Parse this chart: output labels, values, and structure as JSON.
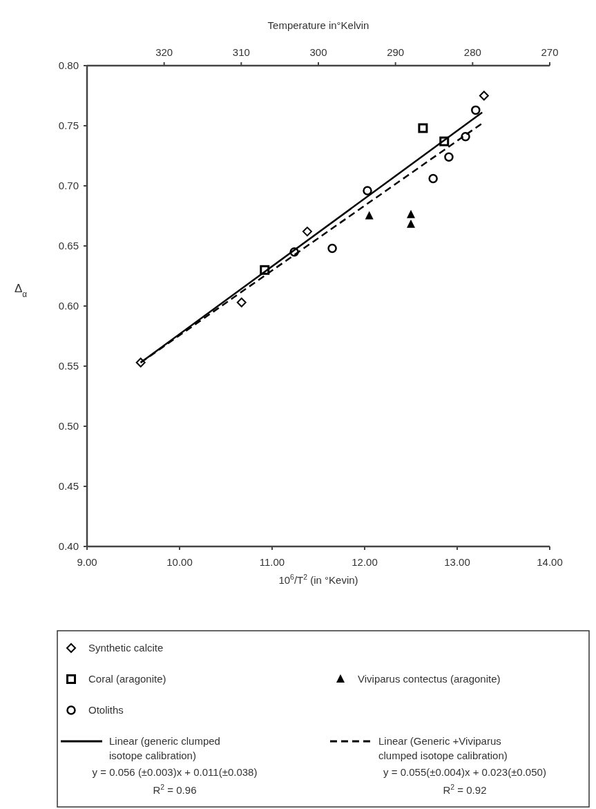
{
  "chart_data": {
    "type": "scatter",
    "xlabel": "10$^{6}$/T$^{2}$ (in °Kevin)",
    "ylabel": "Δ$_{α}$",
    "x2label": "Temperature in°Kelvin",
    "xlim": [
      9,
      14
    ],
    "xticks": [
      {
        "value": 9,
        "label": "9.00"
      },
      {
        "value": 10,
        "label": "10.00"
      },
      {
        "value": 11,
        "label": "11.00"
      },
      {
        "value": 12,
        "label": "12.00"
      },
      {
        "value": 13,
        "label": "13.00"
      },
      {
        "value": 14,
        "label": "14.00"
      }
    ],
    "x2lim": [
      330,
      270
    ],
    "x2ticks": [
      320,
      310,
      300,
      290,
      280,
      270
    ],
    "ylim": [
      0.4,
      0.8
    ],
    "yticks": [
      {
        "value": 0.4,
        "label": "0.40"
      },
      {
        "value": 0.45,
        "label": "0.45"
      },
      {
        "value": 0.5,
        "label": "0.50"
      },
      {
        "value": 0.55,
        "label": "0.55"
      },
      {
        "value": 0.6,
        "label": "0.60"
      },
      {
        "value": 0.65,
        "label": "0.65"
      },
      {
        "value": 0.7,
        "label": "0.70"
      },
      {
        "value": 0.75,
        "label": "0.75"
      },
      {
        "value": 0.8,
        "label": "0.80"
      }
    ],
    "grid": false,
    "legend": "bottom",
    "series": [
      {
        "name": "Synthetic calcite",
        "marker": "diamond",
        "color": "#000000",
        "x": [
          9.58,
          10.67,
          11.38,
          13.29
        ],
        "values": [
          0.553,
          0.603,
          0.662,
          0.775
        ]
      },
      {
        "name": "Coral (aragonite)",
        "marker": "square",
        "color": "#000000",
        "x": [
          10.92,
          12.63,
          12.86
        ],
        "values": [
          0.63,
          0.748,
          0.737
        ]
      },
      {
        "name": "Viviparus contectus (aragonite)",
        "marker": "triangle",
        "color": "#000000",
        "x": [
          12.05,
          12.5,
          12.5
        ],
        "values": [
          0.675,
          0.676,
          0.668
        ]
      },
      {
        "name": "Otoliths",
        "marker": "circle",
        "color": "#000000",
        "x": [
          11.24,
          11.65,
          12.03,
          12.74,
          12.91,
          13.09,
          13.2
        ],
        "values": [
          0.645,
          0.648,
          0.696,
          0.706,
          0.724,
          0.741,
          0.763
        ]
      },
      {
        "name": "Linear (generic clumped isotope calibration)",
        "type": "line",
        "line_style": "solid",
        "marker": "none",
        "color": "#000000",
        "x": [
          9.58,
          13.27
        ],
        "values": [
          0.553,
          0.761
        ]
      },
      {
        "name": "Linear (Generic +Viviparus clumped isotope calibration)",
        "type": "line",
        "line_style": "dashed",
        "marker": "none",
        "color": "#000000",
        "x": [
          9.58,
          13.27
        ],
        "values": [
          0.553,
          0.752
        ]
      }
    ],
    "annotations": [
      "y = 0.056 (±0.003)x + 0.011(±0.038)",
      "R$^{2}$ = 0.96",
      "y = 0.055(±0.004)x + 0.023(±0.050)",
      "R$^{2}$ = 0.92"
    ]
  }
}
